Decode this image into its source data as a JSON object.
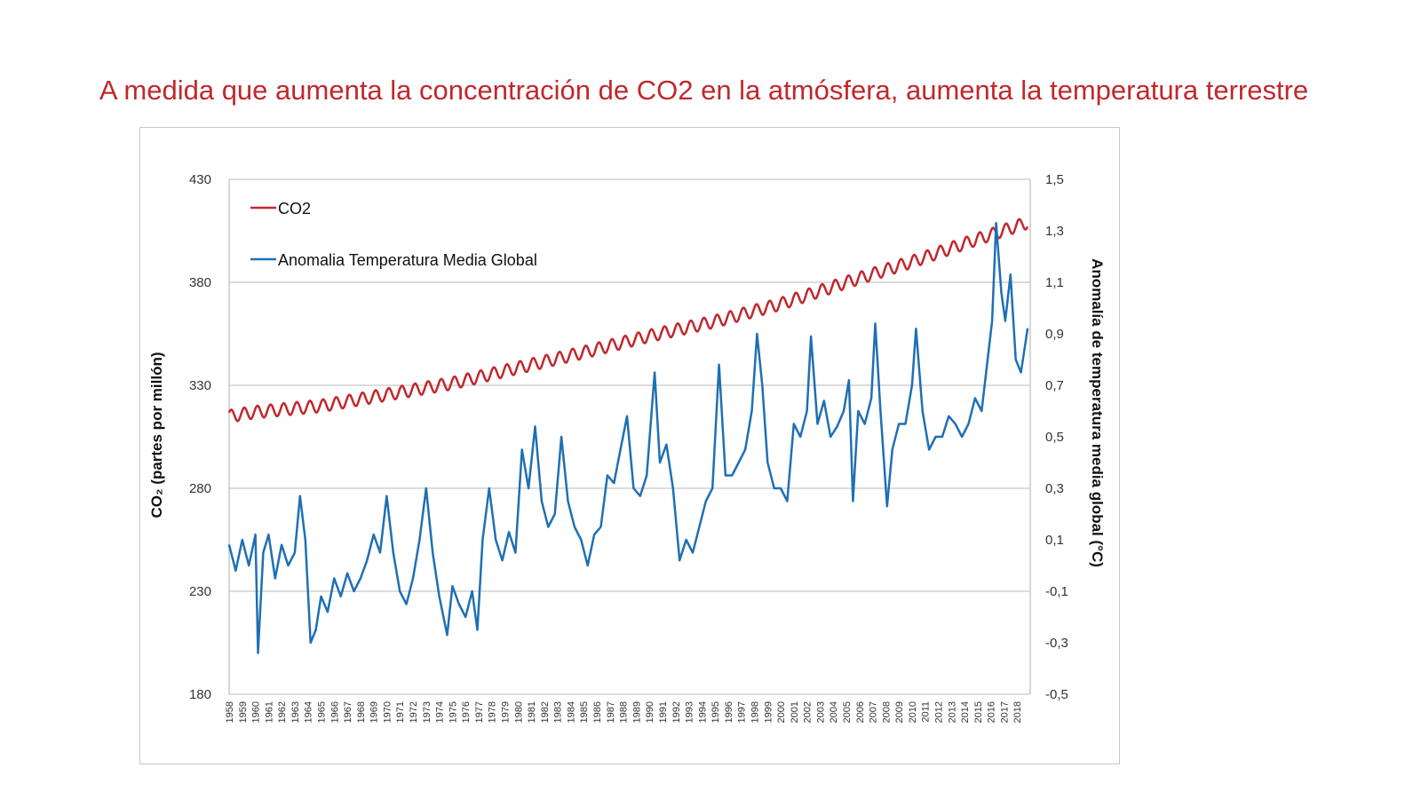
{
  "title": "A medida que aumenta la concentración de CO2 en la atmósfera, aumenta la temperatura terrestre",
  "chart_data": {
    "type": "line",
    "left_axis": {
      "label": "CO₂ (partes por millón)",
      "ylim": [
        180,
        430
      ],
      "ticks": [
        "430",
        "380",
        "330",
        "280",
        "230",
        "180"
      ]
    },
    "right_axis": {
      "label": "Anomalía de temperatura media global (°C)",
      "ylim": [
        -0.5,
        1.5
      ],
      "ticks": [
        "1,5",
        "1,3",
        "1,1",
        "0,9",
        "0,7",
        "0,5",
        "0,3",
        "0,1",
        "-0,1",
        "-0,3",
        "-0,5"
      ]
    },
    "x_ticks": [
      "1958",
      "1959",
      "1960",
      "1961",
      "1962",
      "1963",
      "1964",
      "1965",
      "1966",
      "1967",
      "1968",
      "1969",
      "1970",
      "1971",
      "1972",
      "1973",
      "1974",
      "1975",
      "1976",
      "1977",
      "1978",
      "1979",
      "1980",
      "1981",
      "1982",
      "1983",
      "1984",
      "1985",
      "1986",
      "1987",
      "1988",
      "1989",
      "1990",
      "1991",
      "1992",
      "1993",
      "1994",
      "1995",
      "1996",
      "1997",
      "1998",
      "1999",
      "2000",
      "2001",
      "2002",
      "2003",
      "2004",
      "2005",
      "2006",
      "2007",
      "2008",
      "2009",
      "2010",
      "2011",
      "2012",
      "2013",
      "2014",
      "2015",
      "2016",
      "2017",
      "2018"
    ],
    "xlim": [
      1958,
      2019
    ],
    "grid": "horizontal",
    "legend": "top-left",
    "series": [
      {
        "name": "CO2",
        "axis": "left",
        "color": "#c0282d",
        "x": [
          1958,
          1960,
          1965,
          1970,
          1975,
          1980,
          1985,
          1990,
          1995,
          2000,
          2005,
          2010,
          2015,
          2018.8
        ],
        "y": [
          315,
          317,
          320,
          325.5,
          331,
          338.5,
          346,
          354,
          361,
          369.5,
          380,
          390,
          401,
          409
        ],
        "seasonal_amplitude_ppm": 6
      },
      {
        "name": "Anomalia Temperatura Media Global",
        "axis": "right",
        "color": "#1f6fb4",
        "x": [
          1958,
          1958.5,
          1959,
          1959.5,
          1960,
          1960.2,
          1960.6,
          1961,
          1961.5,
          1962,
          1962.5,
          1963,
          1963.4,
          1963.8,
          1964.2,
          1964.6,
          1965,
          1965.5,
          1966,
          1966.5,
          1967,
          1967.5,
          1968,
          1968.5,
          1969,
          1969.5,
          1970,
          1970.5,
          1971,
          1971.5,
          1972,
          1972.5,
          1973,
          1973.5,
          1974,
          1974.6,
          1975,
          1975.5,
          1976,
          1976.5,
          1976.9,
          1977.3,
          1977.8,
          1978.3,
          1978.8,
          1979.3,
          1979.8,
          1980.3,
          1980.8,
          1981.3,
          1981.8,
          1982.3,
          1982.8,
          1983.3,
          1983.8,
          1984.3,
          1984.8,
          1985.3,
          1985.8,
          1986.3,
          1986.8,
          1987.3,
          1987.8,
          1988.3,
          1988.8,
          1989.3,
          1989.8,
          1990.4,
          1990.8,
          1991.3,
          1991.8,
          1992.3,
          1992.8,
          1993.3,
          1993.8,
          1994.3,
          1994.8,
          1995.3,
          1995.8,
          1996.3,
          1996.8,
          1997.3,
          1997.8,
          1998.2,
          1998.6,
          1999,
          1999.5,
          2000,
          2000.5,
          2001,
          2001.5,
          2002,
          2002.3,
          2002.8,
          2003.3,
          2003.8,
          2004.3,
          2004.8,
          2005.2,
          2005.5,
          2005.9,
          2006.4,
          2006.9,
          2007.2,
          2007.6,
          2008.1,
          2008.5,
          2009,
          2009.5,
          2010,
          2010.3,
          2010.8,
          2011.3,
          2011.8,
          2012.3,
          2012.8,
          2013.3,
          2013.8,
          2014.3,
          2014.8,
          2015.3,
          2015.8,
          2016.1,
          2016.4,
          2016.8,
          2017.1,
          2017.5,
          2017.9,
          2018.3,
          2018.8
        ],
        "y": [
          0.08,
          -0.02,
          0.1,
          0.0,
          0.12,
          -0.34,
          0.05,
          0.12,
          -0.05,
          0.08,
          0.0,
          0.05,
          0.27,
          0.1,
          -0.3,
          -0.25,
          -0.12,
          -0.18,
          -0.05,
          -0.12,
          -0.03,
          -0.1,
          -0.05,
          0.02,
          0.12,
          0.05,
          0.27,
          0.05,
          -0.1,
          -0.15,
          -0.05,
          0.1,
          0.3,
          0.05,
          -0.12,
          -0.27,
          -0.08,
          -0.15,
          -0.2,
          -0.1,
          -0.25,
          0.1,
          0.3,
          0.1,
          0.02,
          0.13,
          0.05,
          0.45,
          0.3,
          0.54,
          0.25,
          0.15,
          0.2,
          0.5,
          0.25,
          0.15,
          0.1,
          0.0,
          0.12,
          0.15,
          0.35,
          0.32,
          0.45,
          0.58,
          0.3,
          0.27,
          0.35,
          0.75,
          0.4,
          0.47,
          0.3,
          0.02,
          0.1,
          0.05,
          0.15,
          0.25,
          0.3,
          0.78,
          0.35,
          0.35,
          0.4,
          0.45,
          0.6,
          0.9,
          0.7,
          0.4,
          0.3,
          0.3,
          0.25,
          0.55,
          0.5,
          0.6,
          0.89,
          0.55,
          0.64,
          0.5,
          0.54,
          0.6,
          0.72,
          0.25,
          0.6,
          0.55,
          0.65,
          0.94,
          0.6,
          0.23,
          0.45,
          0.55,
          0.55,
          0.7,
          0.92,
          0.6,
          0.45,
          0.5,
          0.5,
          0.58,
          0.55,
          0.5,
          0.55,
          0.65,
          0.6,
          0.82,
          0.95,
          1.33,
          1.06,
          0.95,
          1.13,
          0.8,
          0.75,
          0.92
        ]
      }
    ]
  }
}
